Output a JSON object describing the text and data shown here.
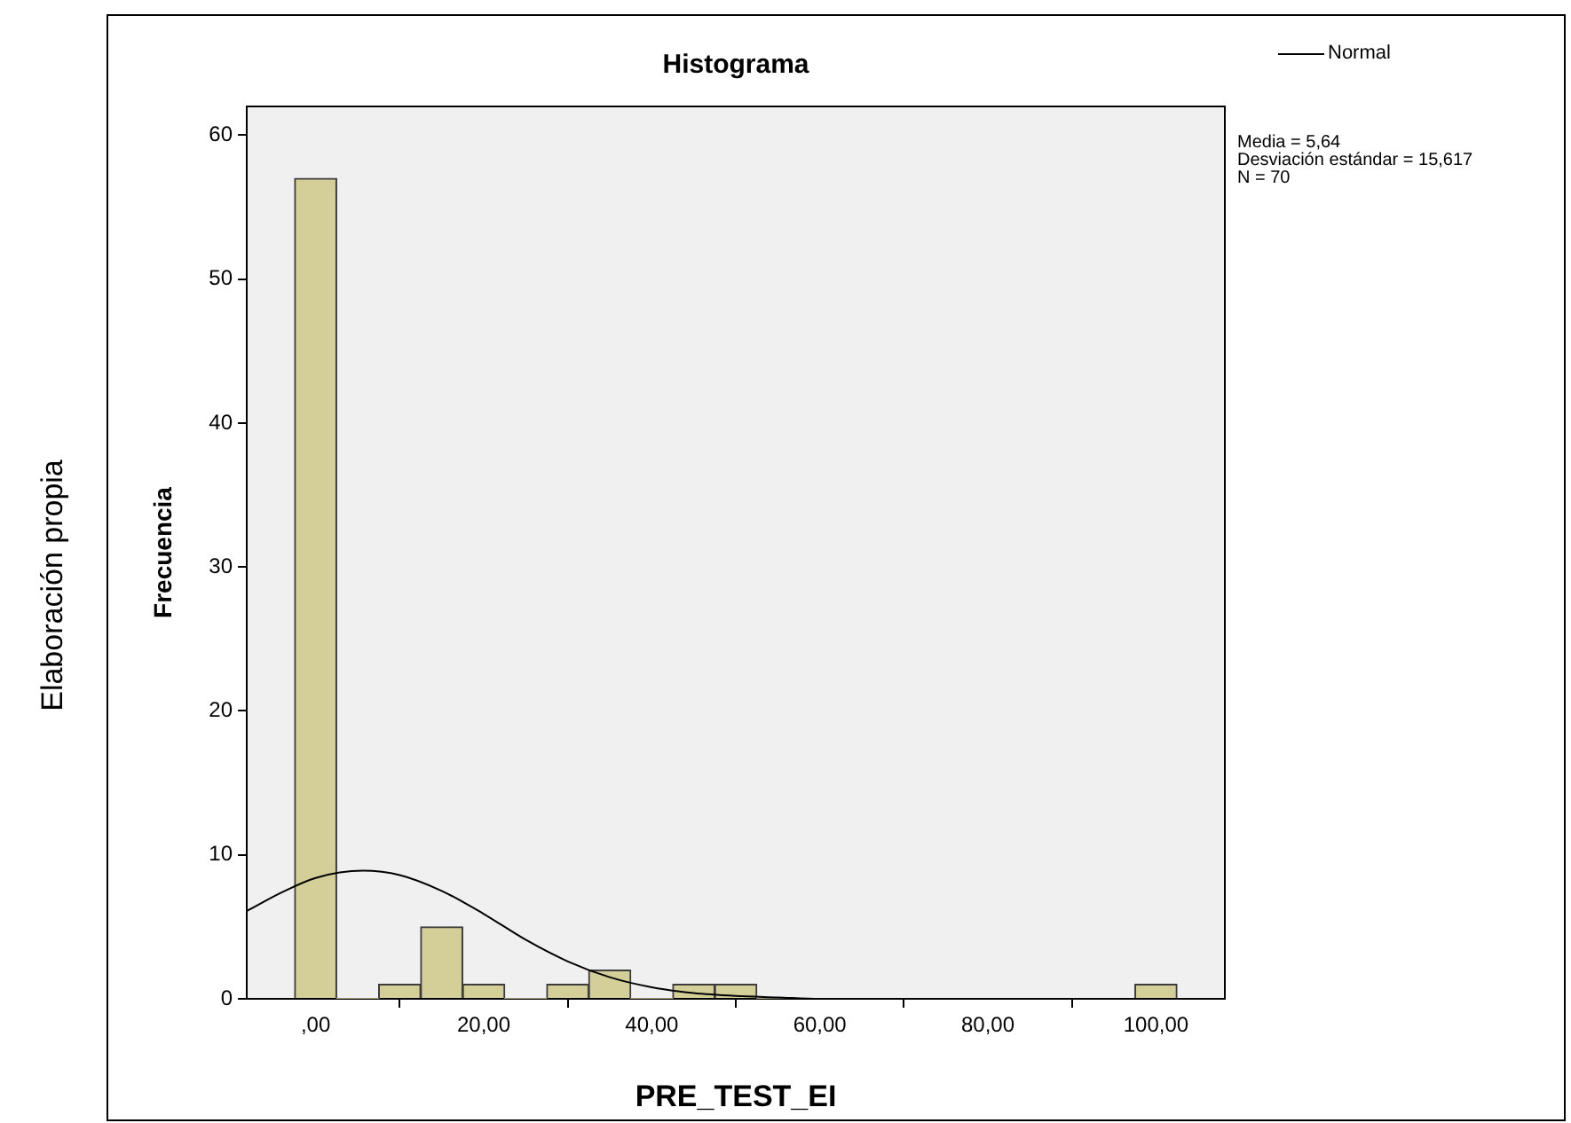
{
  "chart_data": {
    "type": "histogram",
    "title": "Histograma",
    "xlabel": "PRE_TEST_EI",
    "ylabel": "Frecuencia",
    "bins": [
      -2.5,
      2.5,
      7.5,
      12.5,
      17.5,
      22.5,
      27.5,
      32.5,
      37.5,
      42.5,
      47.5,
      52.5,
      57.5,
      62.5,
      67.5,
      72.5,
      77.5,
      82.5,
      87.5,
      92.5,
      97.5,
      102.5
    ],
    "values": [
      57,
      0,
      1,
      5,
      1,
      0,
      1,
      2,
      0,
      1,
      1,
      0,
      0,
      0,
      0,
      0,
      0,
      0,
      0,
      0,
      1
    ],
    "color": "#d4ce98",
    "series": [
      {
        "name": "Normal",
        "type": "line",
        "color": "#000000",
        "x": [
          -8.2,
          -4,
          0,
          5.64,
          10,
          15,
          20,
          25,
          30,
          35,
          40,
          45,
          50,
          55,
          60,
          80,
          100,
          108.2
        ],
        "values": [
          6.1,
          7.4,
          8.4,
          8.9,
          8.6,
          7.5,
          5.9,
          4.1,
          2.6,
          1.5,
          0.8,
          0.4,
          0.2,
          0.1,
          0,
          0,
          0,
          0
        ]
      }
    ],
    "xlim": [
      -8.2,
      108.2
    ],
    "xticks": [
      {
        "value": 0,
        "label": ",00"
      },
      {
        "value": 20,
        "label": "20,00"
      },
      {
        "value": 40,
        "label": "40,00"
      },
      {
        "value": 60,
        "label": "60,00"
      },
      {
        "value": 80,
        "label": "80,00"
      },
      {
        "value": 100,
        "label": "100,00"
      }
    ],
    "ylim": [
      0,
      62
    ],
    "yticks": [
      0,
      10,
      20,
      30,
      40,
      50,
      60
    ],
    "grid": false,
    "legend": "top right",
    "marker": "none",
    "line_style": "solid",
    "annotations": [
      "Media = 5,64",
      "Desviación estándar = 15,617",
      "N = 70",
      "Elaboración propia"
    ]
  }
}
